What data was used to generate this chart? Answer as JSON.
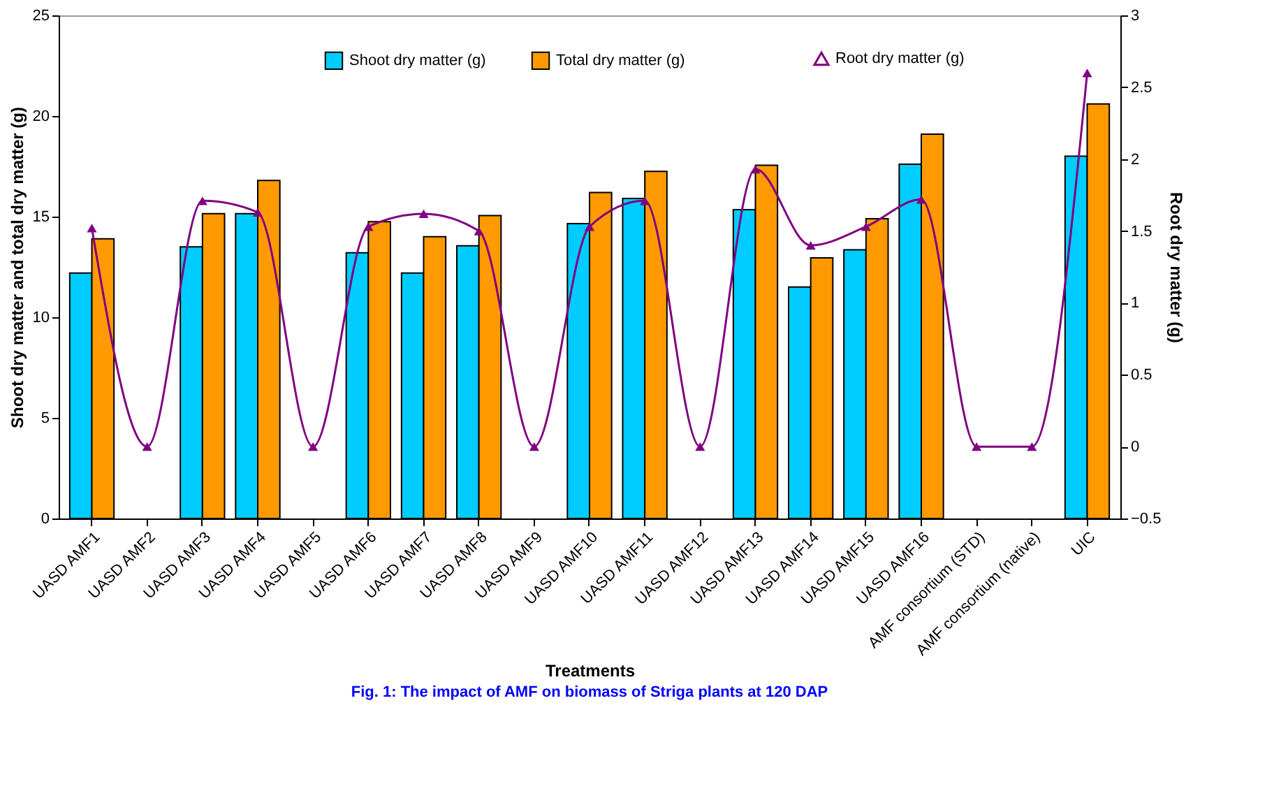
{
  "chart_data": {
    "type": "bar",
    "title": "Fig. 1: The impact of AMF on biomass of Striga plants at 120 DAP",
    "xlabel": "Treatments",
    "ylabel": "Shoot dry matter and total dry matter (g)",
    "y2label": "Root dry matter (g)",
    "categories": [
      "UASD AMF1",
      "UASD AMF2",
      "UASD AMF3",
      "UASD AMF4",
      "UASD AMF5",
      "UASD AMF6",
      "UASD AMF7",
      "UASD AMF8",
      "UASD AMF9",
      "UASD AMF10",
      "UASD AMF11",
      "UASD AMF12",
      "UASD AMF13",
      "UASD AMF14",
      "UASD AMF15",
      "UASD AMF16",
      "AMF consortium (STD)",
      "AMF consortium (native)",
      "UIC"
    ],
    "series": [
      {
        "name": "Shoot dry matter (g)",
        "color": "#00ccff",
        "values": [
          12.2,
          null,
          13.5,
          15.15,
          null,
          13.2,
          12.2,
          13.55,
          null,
          14.65,
          15.9,
          null,
          15.35,
          11.5,
          13.35,
          17.6,
          null,
          null,
          18.0
        ]
      },
      {
        "name": "Total dry matter (g)",
        "color": "#ff9900",
        "values": [
          13.9,
          null,
          15.15,
          16.8,
          null,
          14.75,
          14.0,
          15.05,
          null,
          16.2,
          17.25,
          null,
          17.55,
          12.95,
          14.9,
          19.1,
          null,
          null,
          20.6
        ]
      },
      {
        "name": "Root dry matter (g)",
        "color": "#800080",
        "type": "line",
        "axis": "y2",
        "marker": "triangle",
        "values": [
          1.52,
          0,
          1.71,
          1.63,
          0,
          1.53,
          1.62,
          1.5,
          0,
          1.53,
          1.71,
          0,
          1.93,
          1.4,
          1.53,
          1.72,
          0,
          0,
          2.6
        ]
      }
    ],
    "ylim": [
      0,
      25
    ],
    "yticks": [
      0,
      5,
      10,
      15,
      20,
      25
    ],
    "y2lim": [
      -0.5,
      3
    ],
    "y2ticks": [
      -0.5,
      0,
      0.5,
      1,
      1.5,
      2,
      2.5,
      3
    ],
    "grid": false,
    "legend": "top"
  }
}
